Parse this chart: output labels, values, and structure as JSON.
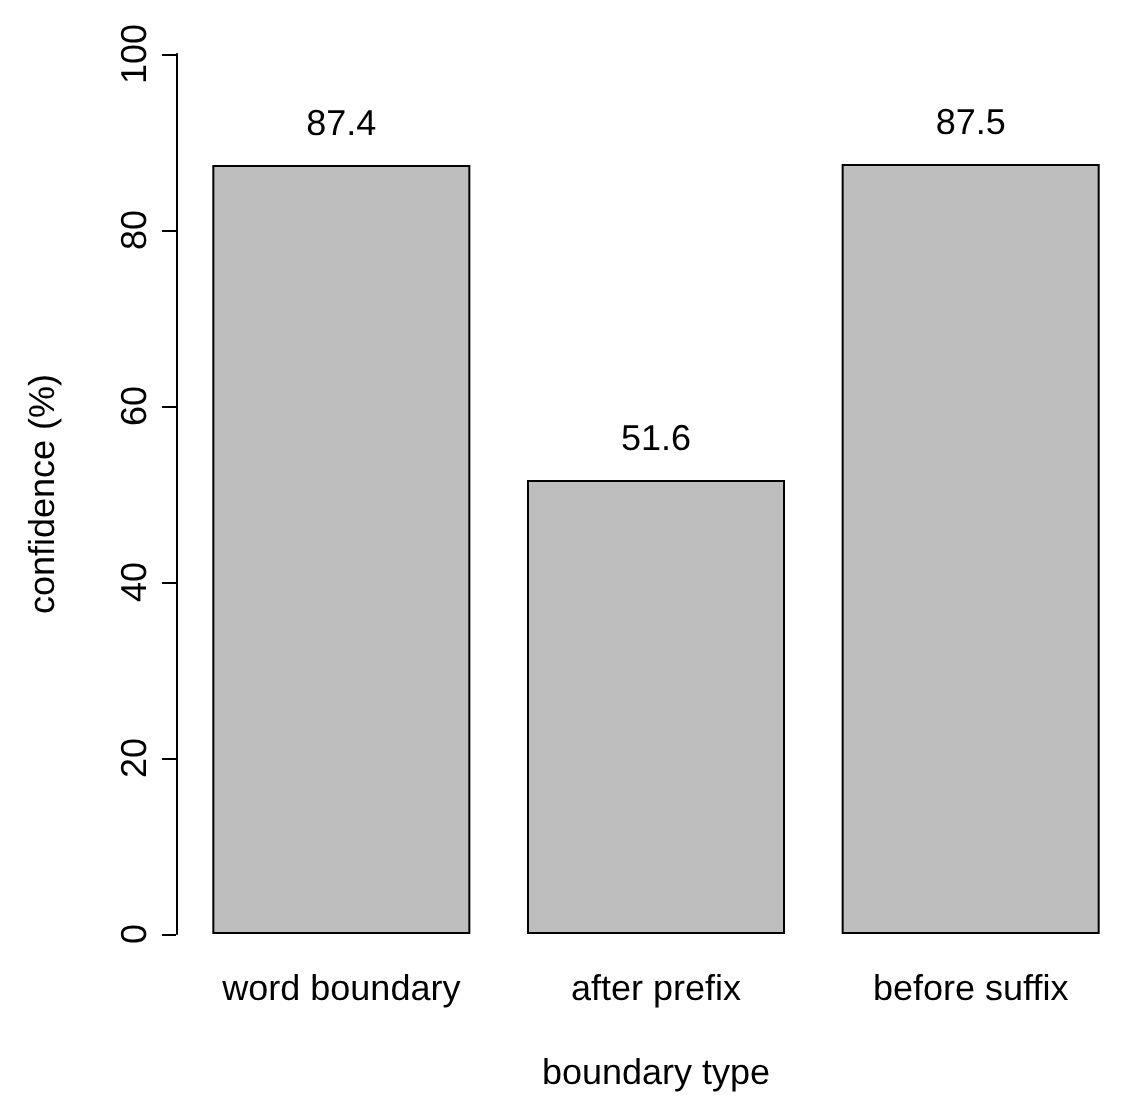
{
  "chart_data": {
    "type": "bar",
    "xlabel": "boundary type",
    "ylabel": "confidence (%)",
    "categories": [
      "word boundary",
      "after prefix",
      "before suffix"
    ],
    "values": [
      87.4,
      51.6,
      87.5
    ],
    "color": "#bebebe",
    "ylim": [
      0,
      100
    ],
    "yticks": [
      0,
      20,
      40,
      60,
      80,
      100
    ],
    "grid": false,
    "data_labels": true
  }
}
